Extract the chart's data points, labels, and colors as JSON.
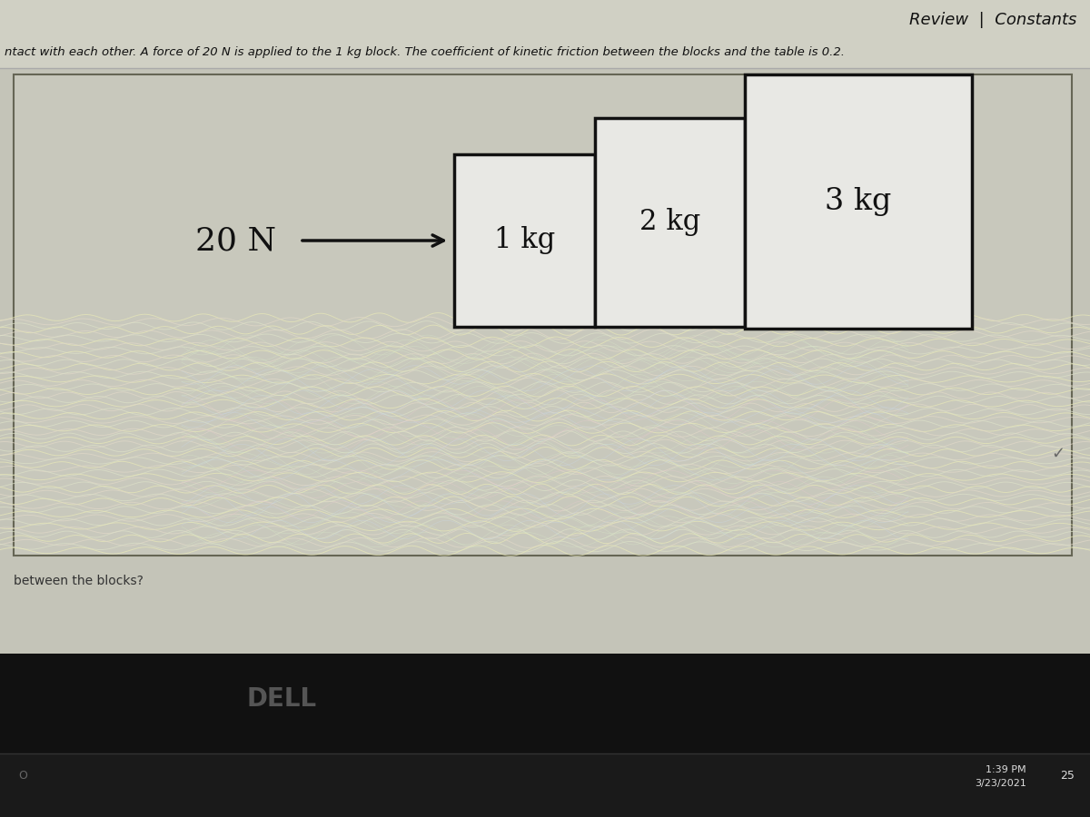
{
  "outer_bg": "#1c1c1c",
  "screen_bg": "#c8c8bc",
  "header_bg": "#d8d8cc",
  "content_bg": "#ccccc0",
  "taskbar_bg": "#1c1c1c",
  "block_fill": "#e8e8e4",
  "block_edge": "#111111",
  "header_text": "Review  |  Constants",
  "problem_text": "ntact with each other. A force of 20 N is applied to the 1 kg block. The coefficient of kinetic friction between the blocks and the table is 0.2.",
  "question_text": "between the blocks?",
  "force_label": "20 N",
  "block_labels": [
    "1 kg",
    "2 kg",
    "3 kg"
  ],
  "time_text": "1:39 PM",
  "date_text": "3/23/2021",
  "dell_text": "DELL",
  "taskbar_num": "25",
  "wavy_colors": [
    "#e8e8c0",
    "#d0d0a8",
    "#f0f0d0",
    "#c8c8a8",
    "#e0e0b8",
    "#dcdca8"
  ],
  "pattern_bg1": "#d4d4b8",
  "pattern_bg2": "#e0e0c8",
  "pink_accent": "#e8d0d8",
  "blue_accent": "#c8d8e8"
}
